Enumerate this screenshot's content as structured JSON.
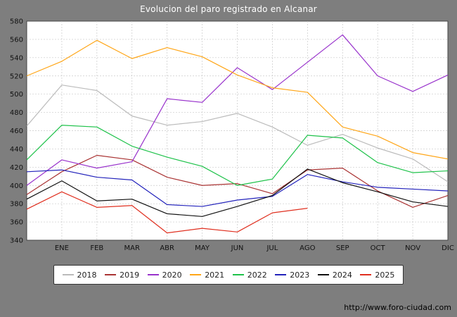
{
  "title": "Evolucion del paro registrado en Alcanar",
  "footer": {
    "url": "http://www.foro-ciudad.com"
  },
  "chart_data": {
    "type": "line",
    "title": "Evolucion del paro registrado en Alcanar",
    "categories": [
      "",
      "ENE",
      "FEB",
      "MAR",
      "ABR",
      "MAY",
      "JUN",
      "JUL",
      "AGO",
      "SEP",
      "OCT",
      "NOV",
      "DIC"
    ],
    "xlabel": "",
    "ylabel": "",
    "ylim": [
      340,
      580
    ],
    "ytick_step": 20,
    "grid": true,
    "legend_position": "bottom",
    "series": [
      {
        "name": "2018",
        "color": "#bbbbbb",
        "values": [
          465,
          510,
          504,
          476,
          466,
          470,
          479,
          464,
          444,
          456,
          441,
          429,
          404
        ]
      },
      {
        "name": "2019",
        "color": "#aa3434",
        "values": [
          390,
          415,
          433,
          428,
          409,
          400,
          402,
          391,
          417,
          419,
          394,
          376,
          389
        ]
      },
      {
        "name": "2020",
        "color": "#9933cc",
        "values": [
          400,
          428,
          419,
          426,
          495,
          491,
          529,
          505,
          535,
          565,
          520,
          503,
          521
        ]
      },
      {
        "name": "2021",
        "color": "#ffa618",
        "values": [
          520,
          536,
          559,
          539,
          551,
          541,
          521,
          507,
          502,
          464,
          454,
          436,
          429
        ]
      },
      {
        "name": "2022",
        "color": "#1ec24a",
        "values": [
          428,
          466,
          464,
          443,
          431,
          421,
          400,
          407,
          455,
          452,
          425,
          414,
          416
        ]
      },
      {
        "name": "2023",
        "color": "#2222bb",
        "values": [
          415,
          417,
          409,
          406,
          379,
          377,
          384,
          388,
          412,
          404,
          398,
          396,
          394
        ]
      },
      {
        "name": "2024",
        "color": "#111111",
        "values": [
          385,
          405,
          383,
          385,
          369,
          366,
          377,
          389,
          418,
          403,
          393,
          382,
          377
        ]
      },
      {
        "name": "2025",
        "color": "#e03020",
        "values": [
          374,
          393,
          376,
          378,
          348,
          353,
          349,
          370,
          375
        ]
      }
    ]
  }
}
